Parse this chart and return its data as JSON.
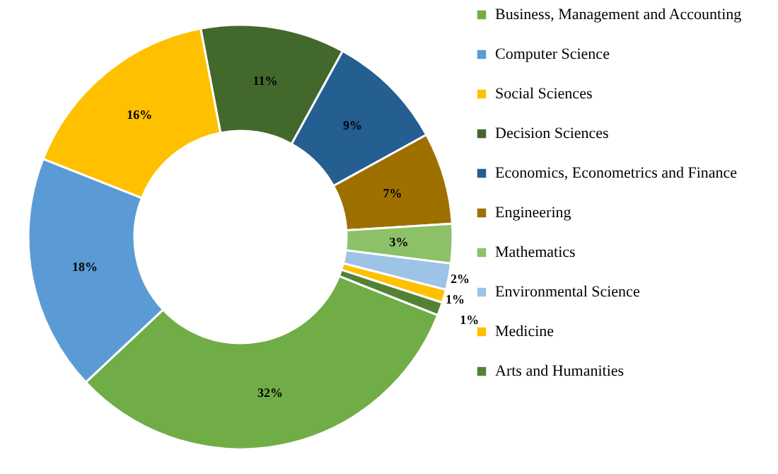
{
  "chart_data": {
    "type": "donut",
    "categories": [
      "Business, Management and Accounting",
      "Computer Science",
      "Social Sciences",
      "Decision Sciences",
      "Economics, Econometrics and Finance",
      "Engineering",
      "Mathematics",
      "Environmental Science",
      "Medicine",
      "Arts and Humanities"
    ],
    "values": [
      32,
      18,
      16,
      11,
      9,
      7,
      3,
      2,
      1,
      1
    ],
    "colors": [
      "#70ad47",
      "#5b9bd5",
      "#ffc000",
      "#43682b",
      "#255e91",
      "#9e7000",
      "#8cc168",
      "#9dc3e6",
      "#ffc000",
      "#548235"
    ],
    "value_labels": [
      "32%",
      "18%",
      "16%",
      "11%",
      "9%",
      "7%",
      "3%",
      "2%",
      "1%",
      "1%"
    ],
    "legend": "right"
  }
}
